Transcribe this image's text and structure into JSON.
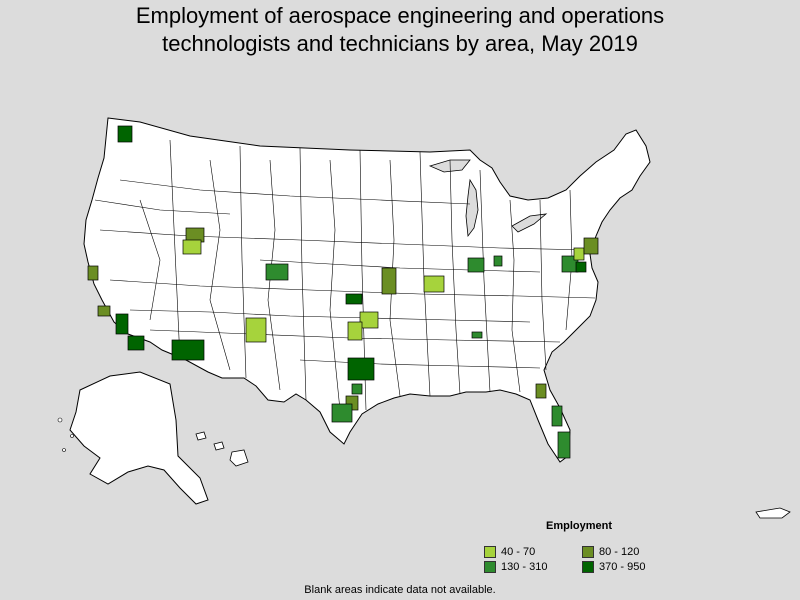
{
  "title_line1": "Employment of aerospace engineering and operations",
  "title_line2": "technologists and technicians by area, May 2019",
  "legend": {
    "title": "Employment",
    "items": [
      {
        "label": "40 - 70",
        "color": "#a6d33c"
      },
      {
        "label": "80 - 120",
        "color": "#6b8e23"
      },
      {
        "label": "130 - 310",
        "color": "#2e8b2e"
      },
      {
        "label": "370 - 950",
        "color": "#006400"
      }
    ]
  },
  "footnote": "Blank areas indicate data not available.",
  "colors": {
    "background": "#dcdcdc",
    "land": "#ffffff",
    "border": "#000000"
  }
}
